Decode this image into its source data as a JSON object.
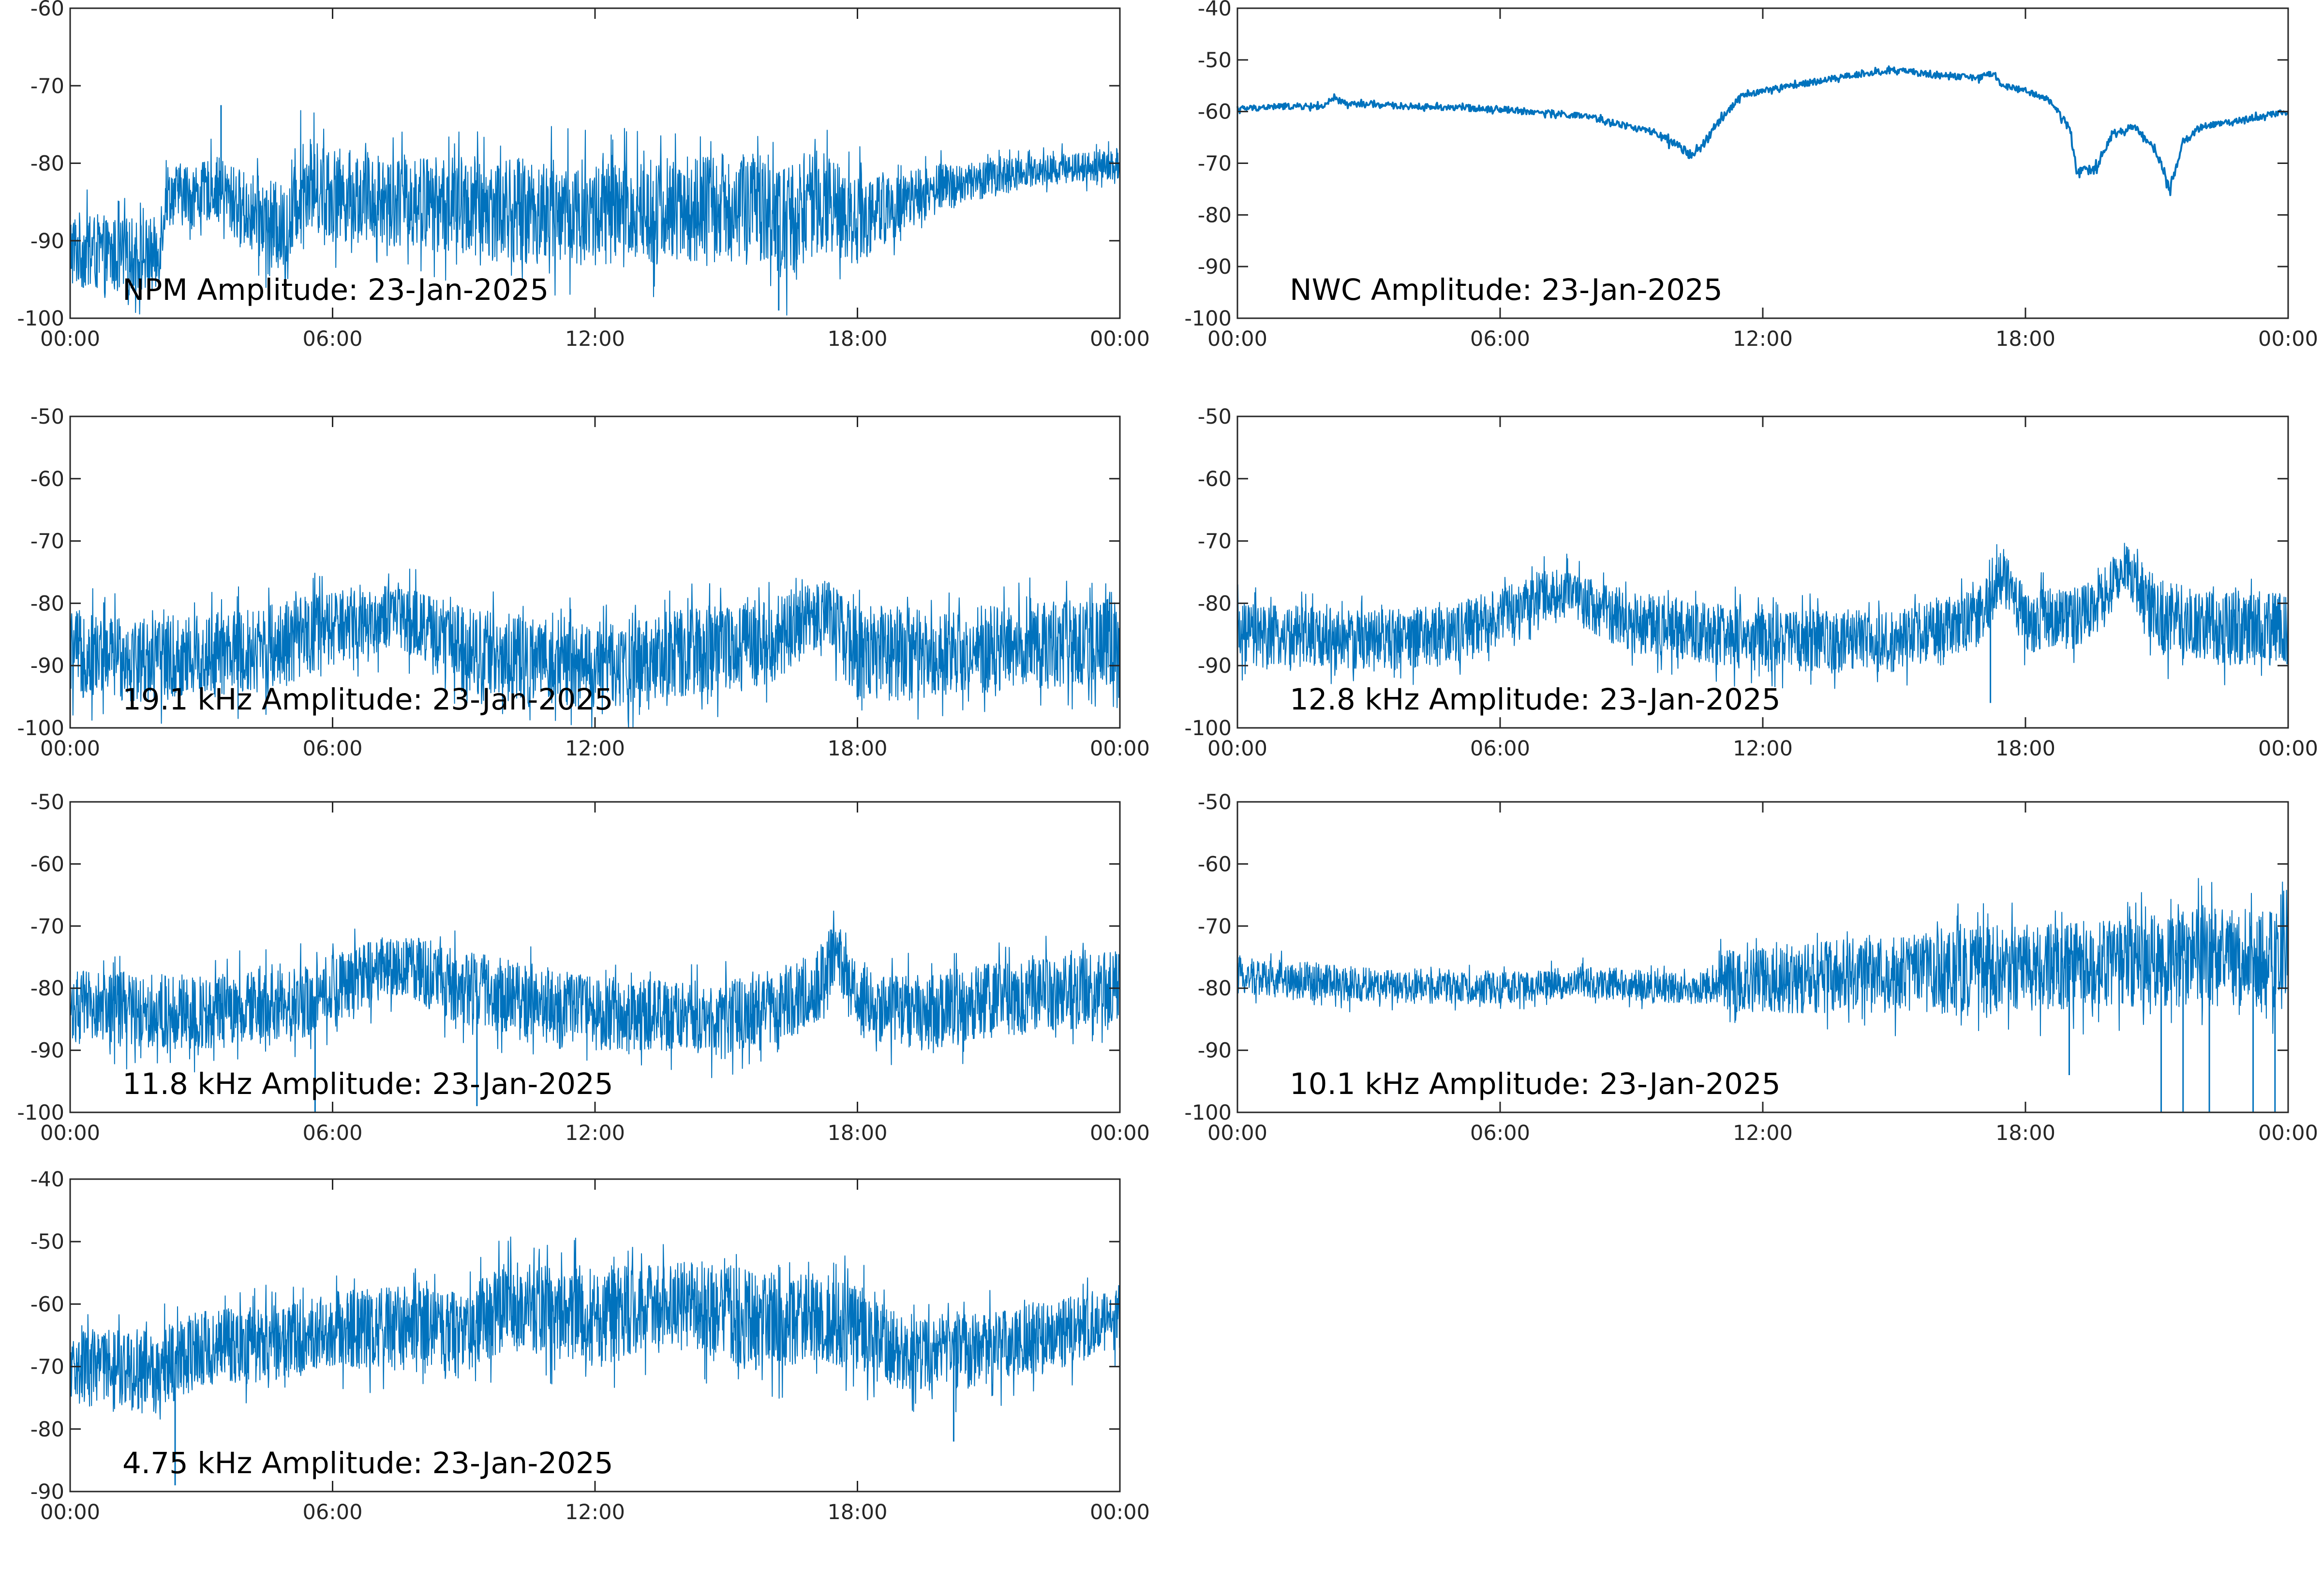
{
  "figure": {
    "background": "#ffffff",
    "axis_color": "#262626",
    "line_color": "#0072BD"
  },
  "chart_data": [
    {
      "type": "line",
      "title": "NPM Amplitude: 23-Jan-2025",
      "x_ticks": [
        "00:00",
        "06:00",
        "12:00",
        "18:00",
        "00:00"
      ],
      "xlim_hours": [
        0,
        24
      ],
      "ylim": [
        -100,
        -60
      ],
      "y_ticks": [
        -60,
        -70,
        -80,
        -90,
        -100
      ],
      "x_hours": [
        0,
        1,
        2,
        2.2,
        3,
        3.3,
        4,
        5,
        5.3,
        6,
        8,
        10,
        12,
        14,
        16,
        16.2,
        17,
        18,
        19,
        20,
        22,
        24
      ],
      "mean": [
        -91,
        -92,
        -92,
        -84,
        -84,
        -83,
        -86,
        -89,
        -82,
        -84,
        -85,
        -86,
        -86.5,
        -86,
        -85.5,
        -88,
        -85,
        -87,
        -85,
        -83,
        -81,
        -80
      ],
      "spread": [
        5,
        5,
        5,
        4,
        4,
        4,
        5,
        6,
        6,
        6,
        6,
        7,
        7,
        7,
        7,
        8,
        7,
        6,
        4,
        3,
        2,
        2
      ],
      "spikes": [
        {
          "x": 3.45,
          "y": -72.5
        },
        {
          "x": 16.2,
          "y": -99
        }
      ]
    },
    {
      "type": "line",
      "title": "NWC Amplitude: 23-Jan-2025",
      "x_ticks": [
        "00:00",
        "06:00",
        "12:00",
        "18:00",
        "00:00"
      ],
      "xlim_hours": [
        0,
        24
      ],
      "ylim": [
        -100,
        -40
      ],
      "y_ticks": [
        -40,
        -50,
        -60,
        -70,
        -80,
        -90,
        -100
      ],
      "x_hours": [
        0,
        1,
        2,
        2.2,
        2.5,
        4,
        6,
        8,
        9.5,
        10.3,
        10.6,
        11,
        11.5,
        12,
        13,
        14,
        15,
        16,
        17,
        17.2,
        17.5,
        18,
        18.5,
        19,
        19.2,
        19.6,
        20,
        20.5,
        21,
        21.3,
        21.6,
        22,
        23,
        24
      ],
      "mean": [
        -59.5,
        -59,
        -59,
        -57.5,
        -58.5,
        -59,
        -59.5,
        -61,
        -64,
        -68,
        -67,
        -62,
        -57,
        -56,
        -54.5,
        -53,
        -52,
        -53,
        -53.5,
        -52.5,
        -55,
        -56,
        -57.5,
        -63,
        -72,
        -71,
        -64,
        -63,
        -68,
        -75,
        -66,
        -63,
        -61.5,
        -60
      ],
      "spread": [
        0.6,
        0.6,
        0.6,
        0.6,
        0.6,
        0.6,
        0.6,
        0.6,
        0.7,
        1,
        1,
        0.8,
        0.6,
        0.6,
        0.6,
        0.6,
        0.6,
        0.6,
        0.6,
        0.6,
        0.6,
        0.6,
        0.6,
        0.8,
        1,
        1,
        0.8,
        0.7,
        0.8,
        1,
        0.8,
        0.6,
        0.6,
        0.6
      ],
      "spikes": []
    },
    {
      "type": "line",
      "title": "19.1 kHz Amplitude: 23-Jan-2025",
      "x_ticks": [
        "00:00",
        "06:00",
        "12:00",
        "18:00",
        "00:00"
      ],
      "xlim_hours": [
        0,
        24
      ],
      "ylim": [
        -100,
        -50
      ],
      "y_ticks": [
        -50,
        -60,
        -70,
        -80,
        -90,
        -100
      ],
      "x_hours": [
        0,
        2,
        4,
        6,
        7.5,
        9,
        10,
        12,
        14,
        16,
        17.3,
        18,
        20,
        22,
        24
      ],
      "mean": [
        -88,
        -89,
        -88,
        -84,
        -82,
        -87,
        -89,
        -90,
        -88,
        -86,
        -81,
        -88,
        -88,
        -87,
        -86
      ],
      "spread": [
        7,
        7,
        7,
        6,
        5,
        7,
        7,
        7,
        7,
        7,
        5,
        8,
        7,
        7,
        7
      ],
      "spikes": [
        {
          "x": 23.3,
          "y": -84
        },
        {
          "x": 14.4,
          "y": -84
        }
      ]
    },
    {
      "type": "line",
      "title": "12.8 kHz Amplitude: 23-Jan-2025",
      "x_ticks": [
        "00:00",
        "06:00",
        "12:00",
        "18:00",
        "00:00"
      ],
      "xlim_hours": [
        0,
        24
      ],
      "ylim": [
        -100,
        -50
      ],
      "y_ticks": [
        -50,
        -60,
        -70,
        -80,
        -90,
        -100
      ],
      "x_hours": [
        0,
        3,
        5,
        7.3,
        9,
        12,
        15,
        17,
        17.5,
        18,
        19.5,
        20.3,
        21,
        22,
        24
      ],
      "mean": [
        -85,
        -86,
        -85,
        -78,
        -83,
        -86,
        -86,
        -82,
        -75,
        -83,
        -82,
        -74,
        -82,
        -84,
        -84
      ],
      "spread": [
        5,
        5,
        5,
        4,
        5,
        5,
        5,
        5,
        4,
        5,
        5,
        4,
        6,
        6,
        6
      ],
      "spikes": [
        {
          "x": 17.2,
          "y": -96
        }
      ]
    },
    {
      "type": "line",
      "title": "11.8 kHz Amplitude: 23-Jan-2025",
      "x_ticks": [
        "00:00",
        "06:00",
        "12:00",
        "18:00",
        "00:00"
      ],
      "xlim_hours": [
        0,
        24
      ],
      "ylim": [
        -100,
        -50
      ],
      "y_ticks": [
        -50,
        -60,
        -70,
        -80,
        -90,
        -100
      ],
      "x_hours": [
        0,
        3,
        5,
        7.5,
        9,
        12,
        15,
        17,
        17.5,
        18,
        19.5,
        21,
        24
      ],
      "mean": [
        -83,
        -84,
        -83,
        -76,
        -80,
        -84,
        -85,
        -81,
        -74,
        -82,
        -84,
        -82,
        -80
      ],
      "spread": [
        6,
        6,
        6,
        5,
        6,
        6,
        6,
        6,
        5,
        6,
        6,
        6,
        6
      ],
      "spikes": [
        {
          "x": 5.6,
          "y": -100
        },
        {
          "x": 9.3,
          "y": -99
        }
      ]
    },
    {
      "type": "line",
      "title": "10.1 kHz Amplitude: 23-Jan-2025",
      "x_ticks": [
        "00:00",
        "06:00",
        "12:00",
        "18:00",
        "00:00"
      ],
      "xlim_hours": [
        0,
        24
      ],
      "ylim": [
        -100,
        -50
      ],
      "y_ticks": [
        -50,
        -60,
        -70,
        -80,
        -90,
        -100
      ],
      "x_hours": [
        0,
        2,
        4,
        6,
        8,
        10,
        10.9,
        11,
        14,
        17,
        20,
        22,
        24
      ],
      "mean": [
        -78,
        -79,
        -80,
        -80,
        -79,
        -80,
        -80,
        -79,
        -78,
        -77,
        -76,
        -75,
        -75
      ],
      "spread": [
        3,
        3,
        2.5,
        2.5,
        2.5,
        2.5,
        2.5,
        5,
        6,
        7,
        7,
        8,
        8
      ],
      "spikes": [
        {
          "x": 19,
          "y": -94
        },
        {
          "x": 21.1,
          "y": -100
        },
        {
          "x": 21.6,
          "y": -100
        },
        {
          "x": 22.2,
          "y": -100
        },
        {
          "x": 23.2,
          "y": -100
        },
        {
          "x": 23.7,
          "y": -100
        }
      ]
    },
    {
      "type": "line",
      "title": "4.75 kHz Amplitude: 23-Jan-2025",
      "x_ticks": [
        "00:00",
        "06:00",
        "12:00",
        "18:00",
        "00:00"
      ],
      "xlim_hours": [
        0,
        24
      ],
      "ylim": [
        -90,
        -40
      ],
      "y_ticks": [
        -40,
        -50,
        -60,
        -70,
        -80,
        -90
      ],
      "x_hours": [
        0,
        2,
        3,
        5,
        6,
        8,
        9,
        10,
        12,
        14,
        15,
        16,
        17,
        18,
        19,
        20,
        22,
        24
      ],
      "mean": [
        -70,
        -71,
        -67,
        -66,
        -64,
        -64,
        -65,
        -60,
        -62,
        -60,
        -62,
        -63,
        -62,
        -64,
        -68,
        -68,
        -66,
        -62
      ],
      "spread": [
        6,
        7,
        6,
        6,
        6,
        7,
        7,
        7,
        8,
        7,
        8,
        8,
        7,
        7,
        6,
        6,
        6,
        5
      ],
      "spikes": [
        {
          "x": 2.4,
          "y": -89
        },
        {
          "x": 20.2,
          "y": -82
        }
      ]
    }
  ]
}
